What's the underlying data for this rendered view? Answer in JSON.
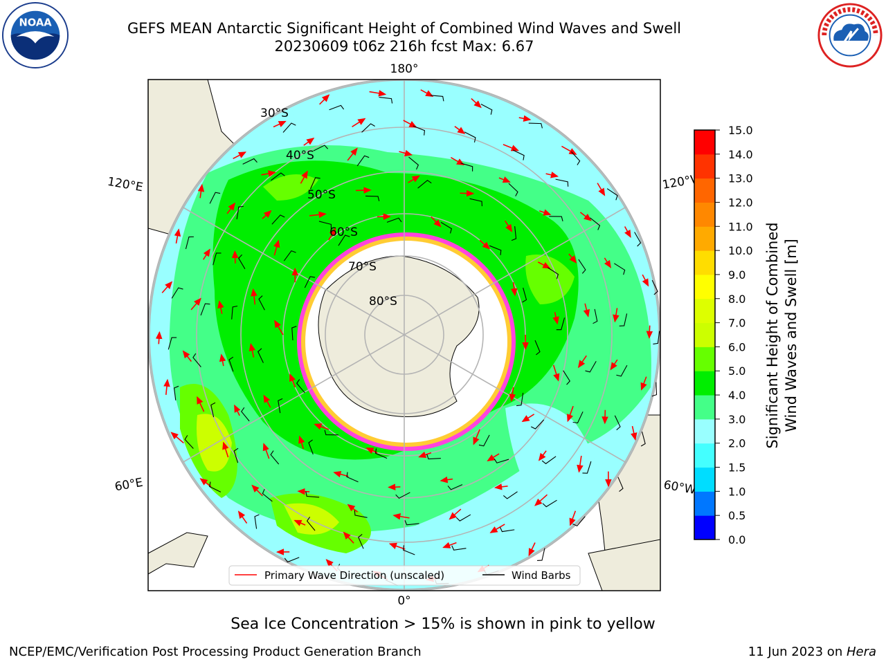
{
  "title": {
    "line1": "GEFS MEAN Antarctic Significant Height of Combined Wind Waves and Swell",
    "line2": "20230609 t06z 216h fcst   Max: 6.67"
  },
  "map": {
    "projection": "south-polar-stereographic",
    "longitude_labels": {
      "top": "180°",
      "bottom": "0°",
      "upper_left": "120°E",
      "lower_left": "60°E",
      "upper_right": "120°W",
      "lower_right": "60°W"
    },
    "latitude_labels": [
      "30°S",
      "40°S",
      "50°S",
      "60°S",
      "70°S",
      "80°S"
    ],
    "colors": {
      "land": "#eeecdc",
      "ice_pink": "#ff44dd",
      "ice_yellow": "#ffcc33",
      "grid": "#b4b4b4"
    }
  },
  "legend": {
    "wave_direction": "Primary Wave Direction (unscaled)",
    "wind_barbs": "Wind Barbs"
  },
  "colorbar": {
    "label_line1": "Significant Height of Combined",
    "label_line2": "Wind Waves and Swell [m]",
    "ticks": [
      "0.0",
      "0.5",
      "1.0",
      "1.5",
      "2.0",
      "3.0",
      "4.0",
      "5.0",
      "6.0",
      "7.0",
      "8.0",
      "9.0",
      "10.0",
      "11.0",
      "12.0",
      "13.0",
      "14.0",
      "15.0"
    ],
    "colors": [
      "#0000ff",
      "#0077ff",
      "#00ddff",
      "#44ffff",
      "#99ffff",
      "#44ff88",
      "#00ee00",
      "#66ff00",
      "#ccff00",
      "#ddff00",
      "#ffff00",
      "#ffdd00",
      "#ffaa00",
      "#ff8800",
      "#ff6600",
      "#ff3300",
      "#ff0000"
    ]
  },
  "footer": {
    "ice_note": "Sea Ice Concentration > 15% is shown in pink to yellow",
    "credit": "NCEP/EMC/Verification Post Processing Product Generation Branch",
    "date": "11 Jun 2023 on ",
    "machine": "Hera"
  },
  "logos": {
    "noaa_text": "NOAA"
  }
}
